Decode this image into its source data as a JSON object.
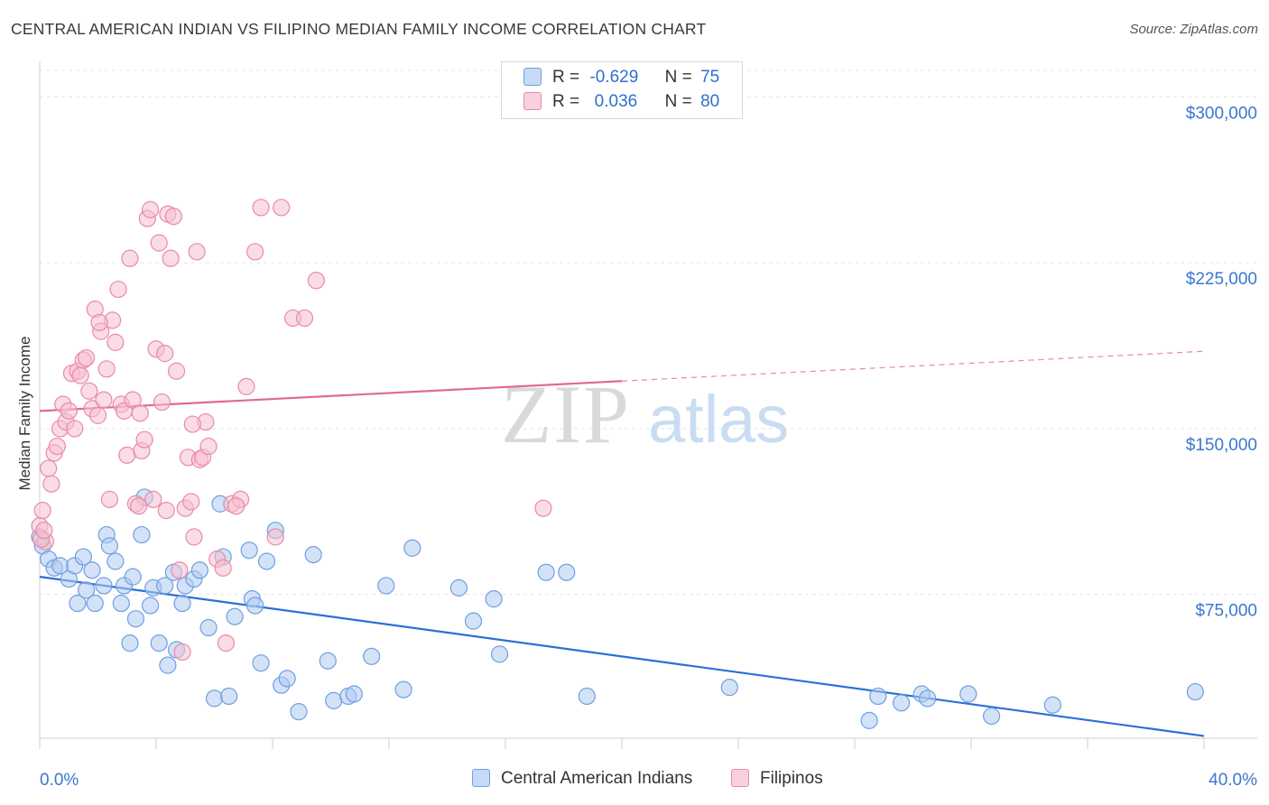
{
  "title": "CENTRAL AMERICAN INDIAN VS FILIPINO MEDIAN FAMILY INCOME CORRELATION CHART",
  "source": "Source: ZipAtlas.com",
  "watermark": {
    "zip": "ZIP",
    "atlas": "atlas"
  },
  "legend": {
    "rows": [
      {
        "r_label": "R =",
        "r_value": "-0.629",
        "n_label": "N =",
        "n_value": "75"
      },
      {
        "r_label": "R =",
        "r_value": " 0.036",
        "n_label": "N =",
        "n_value": "80"
      }
    ]
  },
  "colors": {
    "blue_fill": "#aecbf0",
    "blue_stroke": "#6f9fe0",
    "blue_line": "#2a6fd6",
    "pink_fill": "#f6bfd0",
    "pink_stroke": "#e98aa8",
    "pink_line": "#e06a93",
    "tick_text": "#3a78d0",
    "grid": "#e3e3e3"
  },
  "chart_data": {
    "type": "scatter",
    "title": "CENTRAL AMERICAN INDIAN VS FILIPINO MEDIAN FAMILY INCOME CORRELATION CHART",
    "xlabel": "",
    "ylabel": "Median Family Income",
    "xlim": [
      0,
      40
    ],
    "ylim": [
      10000,
      312000
    ],
    "x_tick_labels": [
      "0.0%",
      "40.0%"
    ],
    "y_ticks": [
      75000,
      150000,
      225000,
      300000
    ],
    "y_tick_labels": [
      "$75,000",
      "$150,000",
      "$225,000",
      "$300,000"
    ],
    "grid": "horizontal dashed",
    "legend_position": "top-center and bottom",
    "series": [
      {
        "name": "Central American Indians",
        "color": "#6f9fe0",
        "trend": {
          "x": [
            0,
            40
          ],
          "y": [
            83000,
            11000
          ],
          "solid_until": 40
        },
        "points": [
          [
            0.0,
            101000
          ],
          [
            0.1,
            97000
          ],
          [
            0.3,
            91000
          ],
          [
            0.5,
            87000
          ],
          [
            0.7,
            88000
          ],
          [
            1.0,
            82000
          ],
          [
            1.2,
            88000
          ],
          [
            1.3,
            71000
          ],
          [
            1.5,
            92000
          ],
          [
            1.6,
            77000
          ],
          [
            1.8,
            86000
          ],
          [
            1.9,
            71000
          ],
          [
            2.2,
            79000
          ],
          [
            2.3,
            102000
          ],
          [
            2.4,
            97000
          ],
          [
            2.6,
            90000
          ],
          [
            2.8,
            71000
          ],
          [
            2.9,
            79000
          ],
          [
            3.1,
            53000
          ],
          [
            3.2,
            83000
          ],
          [
            3.3,
            64000
          ],
          [
            3.5,
            102000
          ],
          [
            3.6,
            119000
          ],
          [
            3.8,
            70000
          ],
          [
            3.9,
            78000
          ],
          [
            4.1,
            53000
          ],
          [
            4.3,
            79000
          ],
          [
            4.4,
            43000
          ],
          [
            4.6,
            85000
          ],
          [
            4.7,
            50000
          ],
          [
            4.9,
            71000
          ],
          [
            5.0,
            79000
          ],
          [
            5.3,
            82000
          ],
          [
            5.5,
            86000
          ],
          [
            5.8,
            60000
          ],
          [
            6.0,
            28000
          ],
          [
            6.2,
            116000
          ],
          [
            6.3,
            92000
          ],
          [
            6.5,
            29000
          ],
          [
            6.7,
            65000
          ],
          [
            7.2,
            95000
          ],
          [
            7.3,
            73000
          ],
          [
            7.4,
            70000
          ],
          [
            7.6,
            44000
          ],
          [
            7.8,
            90000
          ],
          [
            8.1,
            104000
          ],
          [
            8.3,
            34000
          ],
          [
            8.5,
            37000
          ],
          [
            8.9,
            22000
          ],
          [
            9.4,
            93000
          ],
          [
            9.9,
            45000
          ],
          [
            10.1,
            27000
          ],
          [
            10.6,
            29000
          ],
          [
            10.8,
            30000
          ],
          [
            11.4,
            47000
          ],
          [
            11.9,
            79000
          ],
          [
            12.5,
            32000
          ],
          [
            12.8,
            96000
          ],
          [
            14.4,
            78000
          ],
          [
            14.9,
            63000
          ],
          [
            15.6,
            73000
          ],
          [
            15.8,
            48000
          ],
          [
            17.4,
            85000
          ],
          [
            18.1,
            85000
          ],
          [
            18.8,
            29000
          ],
          [
            23.7,
            33000
          ],
          [
            28.5,
            18000
          ],
          [
            28.8,
            29000
          ],
          [
            29.6,
            26000
          ],
          [
            30.3,
            30000
          ],
          [
            30.5,
            28000
          ],
          [
            31.9,
            30000
          ],
          [
            32.7,
            20000
          ],
          [
            34.8,
            25000
          ],
          [
            39.7,
            31000
          ]
        ]
      },
      {
        "name": "Filipinos",
        "color": "#e98aa8",
        "trend": {
          "x": [
            0,
            40
          ],
          "y": [
            158000,
            185000
          ],
          "solid_until": 20
        },
        "points": [
          [
            0.0,
            106000
          ],
          [
            0.1,
            113000
          ],
          [
            0.2,
            99000
          ],
          [
            0.3,
            132000
          ],
          [
            0.4,
            125000
          ],
          [
            0.5,
            139000
          ],
          [
            0.6,
            142000
          ],
          [
            0.7,
            150000
          ],
          [
            0.8,
            161000
          ],
          [
            0.9,
            153000
          ],
          [
            1.0,
            158000
          ],
          [
            1.1,
            175000
          ],
          [
            1.2,
            150000
          ],
          [
            1.3,
            176000
          ],
          [
            1.4,
            174000
          ],
          [
            1.5,
            181000
          ],
          [
            1.6,
            182000
          ],
          [
            1.7,
            167000
          ],
          [
            1.8,
            159000
          ],
          [
            1.9,
            204000
          ],
          [
            2.0,
            156000
          ],
          [
            2.1,
            194000
          ],
          [
            2.2,
            163000
          ],
          [
            2.3,
            177000
          ],
          [
            2.4,
            118000
          ],
          [
            2.5,
            199000
          ],
          [
            2.6,
            189000
          ],
          [
            2.7,
            213000
          ],
          [
            2.8,
            161000
          ],
          [
            2.9,
            158000
          ],
          [
            3.0,
            138000
          ],
          [
            3.1,
            227000
          ],
          [
            3.2,
            163000
          ],
          [
            3.3,
            116000
          ],
          [
            3.4,
            115000
          ],
          [
            3.5,
            140000
          ],
          [
            3.6,
            145000
          ],
          [
            3.7,
            245000
          ],
          [
            3.8,
            249000
          ],
          [
            3.9,
            118000
          ],
          [
            4.0,
            186000
          ],
          [
            4.1,
            234000
          ],
          [
            4.2,
            162000
          ],
          [
            4.3,
            184000
          ],
          [
            4.4,
            247000
          ],
          [
            4.5,
            227000
          ],
          [
            4.6,
            246000
          ],
          [
            4.7,
            176000
          ],
          [
            4.8,
            86000
          ],
          [
            4.9,
            49000
          ],
          [
            5.0,
            114000
          ],
          [
            5.1,
            137000
          ],
          [
            5.2,
            117000
          ],
          [
            5.3,
            101000
          ],
          [
            5.4,
            230000
          ],
          [
            5.5,
            136000
          ],
          [
            5.6,
            137000
          ],
          [
            5.7,
            153000
          ],
          [
            5.8,
            142000
          ],
          [
            6.1,
            91000
          ],
          [
            6.3,
            87000
          ],
          [
            6.4,
            53000
          ],
          [
            6.6,
            116000
          ],
          [
            6.9,
            118000
          ],
          [
            7.1,
            169000
          ],
          [
            7.4,
            230000
          ],
          [
            7.6,
            250000
          ],
          [
            8.1,
            101000
          ],
          [
            8.3,
            250000
          ],
          [
            8.7,
            200000
          ],
          [
            9.1,
            200000
          ],
          [
            9.5,
            217000
          ],
          [
            0.05,
            100000
          ],
          [
            0.15,
            104000
          ],
          [
            2.05,
            198000
          ],
          [
            3.45,
            157000
          ],
          [
            5.25,
            152000
          ],
          [
            4.35,
            113000
          ],
          [
            6.75,
            115000
          ],
          [
            17.3,
            114000
          ]
        ]
      }
    ]
  }
}
